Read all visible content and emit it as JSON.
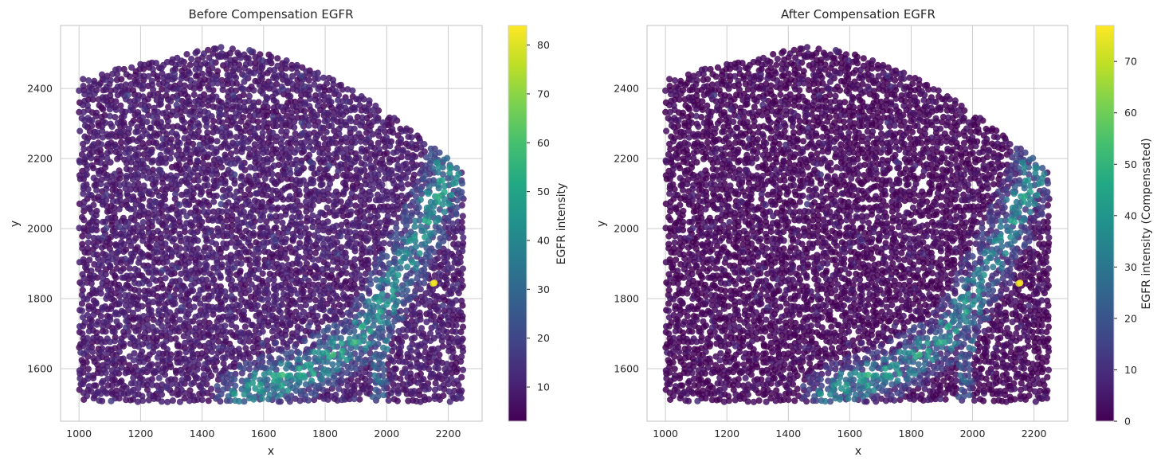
{
  "chart_data": [
    {
      "type": "scatter",
      "title": "Before Compensation EGFR",
      "xlabel": "x",
      "ylabel": "y",
      "xlim": [
        940,
        2310
      ],
      "ylim": [
        1450,
        2580
      ],
      "xticks": [
        1000,
        1200,
        1400,
        1600,
        1800,
        2000,
        2200
      ],
      "yticks": [
        1600,
        1800,
        2000,
        2200,
        2400
      ],
      "grid": true,
      "colormap": "viridis",
      "colorbar": {
        "label": "EGFR intensity",
        "min": 3,
        "max": 84,
        "ticks": [
          10,
          20,
          30,
          40,
          50,
          60,
          70,
          80
        ]
      },
      "summary": {
        "n_points_approx": 4400,
        "x_range": [
          1000,
          2250
        ],
        "y_range": [
          1505,
          2525
        ],
        "background_intensity": "about 3-15",
        "high_intensity_band": "curved band from (1520, 1530) through (1900, 1680), (2060, 1900) to (2200, 2180), values 20-60",
        "max_point": {
          "x": 2155,
          "y": 1845,
          "value": 84
        }
      }
    },
    {
      "type": "scatter",
      "title": "After Compensation EGFR",
      "xlabel": "x",
      "ylabel": "y",
      "xlim": [
        940,
        2310
      ],
      "ylim": [
        1450,
        2580
      ],
      "xticks": [
        1000,
        1200,
        1400,
        1600,
        1800,
        2000,
        2200
      ],
      "yticks": [
        1600,
        1800,
        2000,
        2200,
        2400
      ],
      "grid": true,
      "colormap": "viridis",
      "colorbar": {
        "label": "EGFR intensity (Compensated)",
        "min": 0,
        "max": 77,
        "ticks": [
          0,
          10,
          20,
          30,
          40,
          50,
          60,
          70
        ]
      },
      "summary": {
        "n_points_approx": 4400,
        "x_range": [
          1000,
          2250
        ],
        "y_range": [
          1505,
          2525
        ],
        "background_intensity": "about 0-8",
        "high_intensity_band": "same curved band, values 15-55",
        "max_point": {
          "x": 2155,
          "y": 1845,
          "value": 77
        }
      }
    }
  ]
}
